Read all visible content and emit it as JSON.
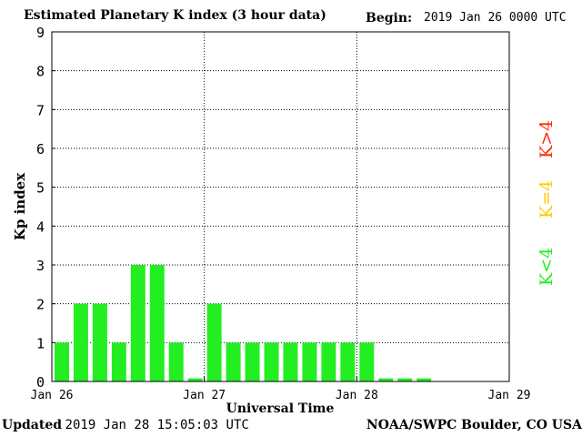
{
  "header": {
    "title": "Estimated Planetary K index (3 hour data)",
    "begin_label": "Begin:",
    "begin_value": "2019 Jan 26 0000 UTC"
  },
  "footer": {
    "updated_label": "Updated",
    "updated_value": "2019 Jan 28 15:05:03 UTC",
    "credit": "NOAA/SWPC Boulder, CO USA"
  },
  "legend": [
    {
      "label": "K>4",
      "color": "#ff2a00"
    },
    {
      "label": "K=4",
      "color": "#ffcc00"
    },
    {
      "label": "K<4",
      "color": "#22ee22"
    }
  ],
  "colors": {
    "bar": "#22ee22",
    "grid": "#000000"
  },
  "chart_data": {
    "type": "bar",
    "title": "Estimated Planetary K index (3 hour data)",
    "xlabel": "Universal Time",
    "ylabel": "Kp index",
    "ylim": [
      0,
      9
    ],
    "y_ticks": [
      "0",
      "1",
      "2",
      "3",
      "4",
      "5",
      "6",
      "7",
      "8",
      "9"
    ],
    "x_ticks": [
      "Jan 26",
      "Jan 27",
      "Jan 28",
      "Jan 29"
    ],
    "x_start": "2019-01-26 00:00 UTC",
    "x_end": "2019-01-29 00:00 UTC",
    "interval_hours": 3,
    "series": [
      {
        "values": [
          1,
          2,
          2,
          1,
          3,
          3,
          1,
          0,
          2,
          1,
          1,
          1,
          1,
          1,
          1,
          1,
          1,
          0,
          0,
          0
        ]
      }
    ],
    "grid": true
  }
}
